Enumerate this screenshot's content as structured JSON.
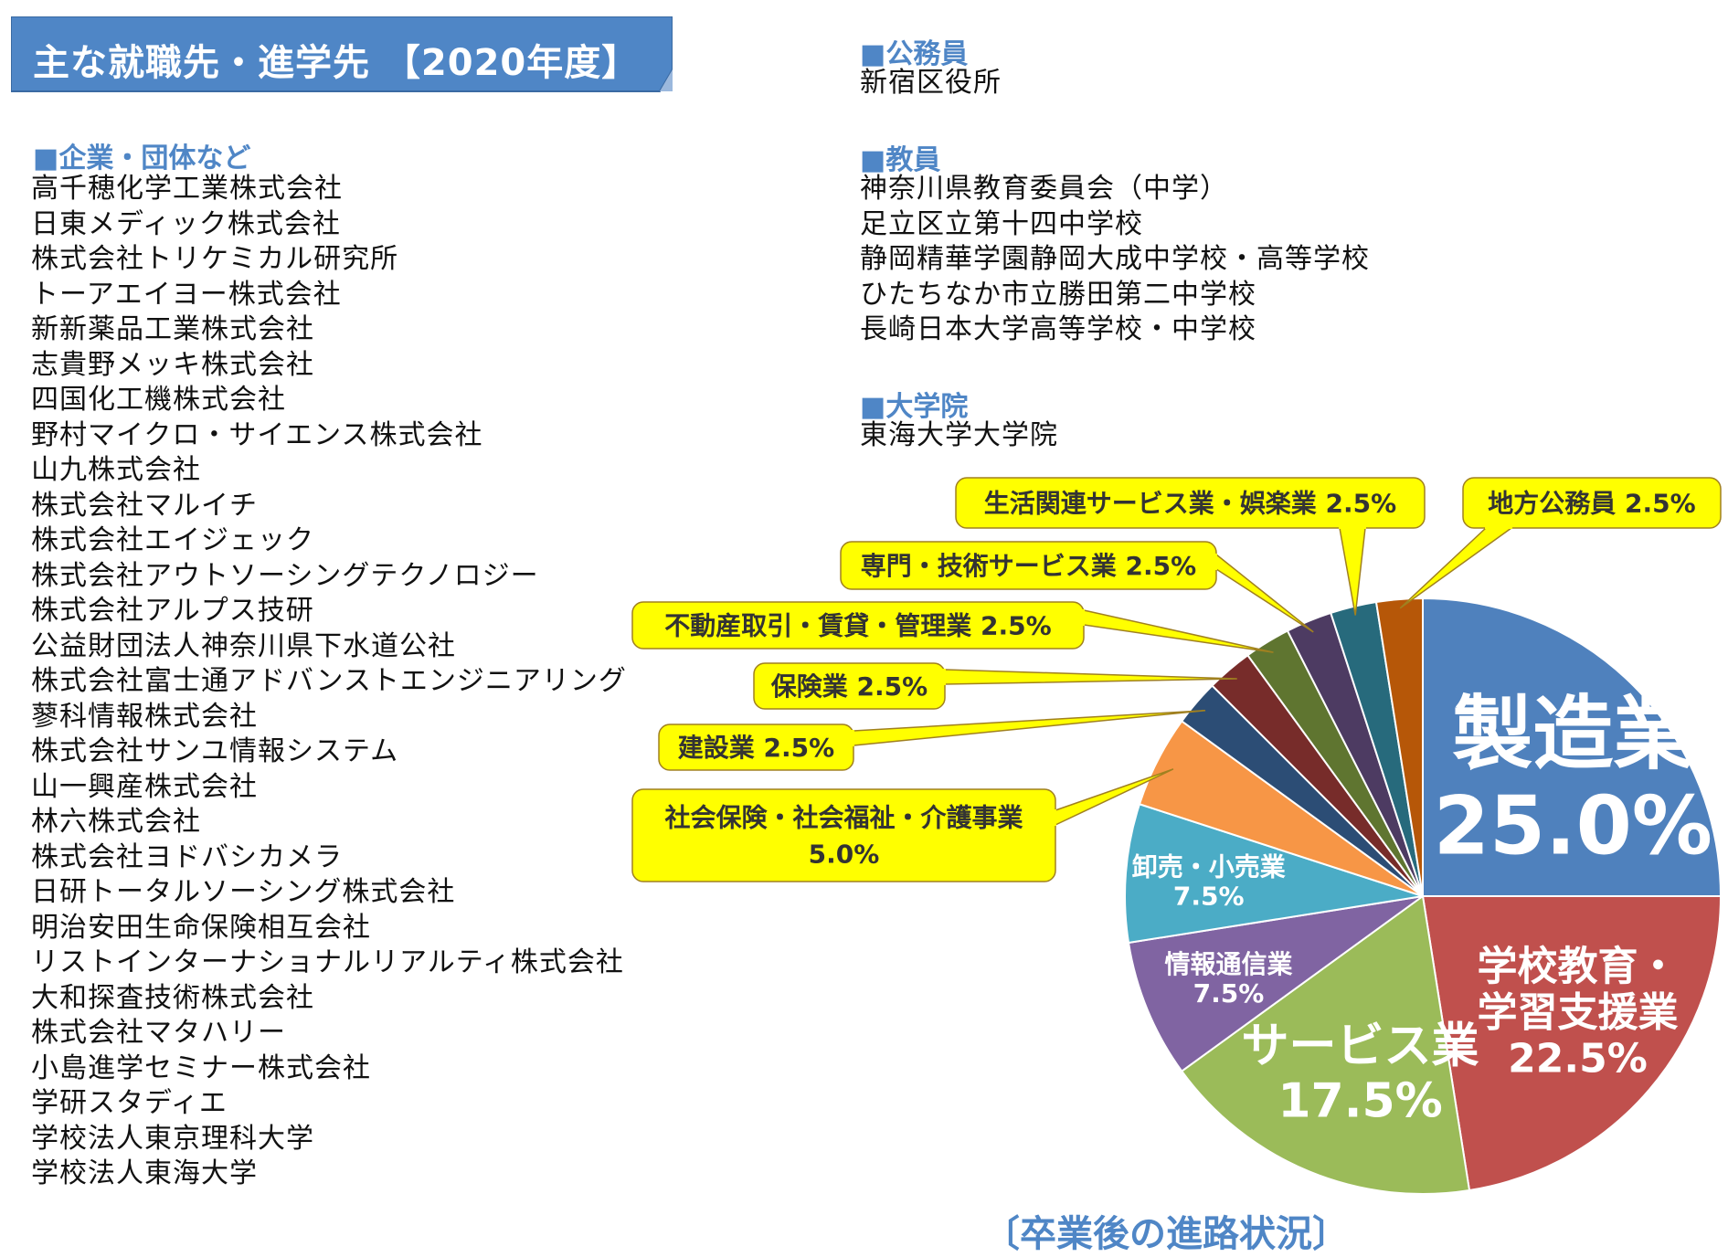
{
  "header": {
    "title": "主な就職先・進学先 【2020年度】"
  },
  "sections": {
    "companies": {
      "heading": "■企業・団体など",
      "items": [
        "高千穂化学工業株式会社",
        "日東メディック株式会社",
        "株式会社トリケミカル研究所",
        "トーアエイヨー株式会社",
        "新新薬品工業株式会社",
        "志貴野メッキ株式会社",
        "四国化工機株式会社",
        "野村マイクロ・サイエンス株式会社",
        "山九株式会社",
        "株式会社マルイチ",
        "株式会社エイジェック",
        "株式会社アウトソーシングテクノロジー",
        "株式会社アルプス技研",
        "公益財団法人神奈川県下水道公社",
        "株式会社富士通アドバンストエンジニアリング",
        "蓼科情報株式会社",
        "株式会社サンユ情報システム",
        "山一興産株式会社",
        "林六株式会社",
        "株式会社ヨドバシカメラ",
        "日研トータルソーシング株式会社",
        "明治安田生命保険相互会社",
        "リストインターナショナルリアルティ株式会社",
        "大和探査技術株式会社",
        "株式会社マタハリー",
        "小島進学セミナー株式会社",
        "学研スタディエ",
        "学校法人東京理科大学",
        "学校法人東海大学"
      ]
    },
    "civil_servants": {
      "heading": "■公務員",
      "items": [
        "新宿区役所"
      ]
    },
    "teachers": {
      "heading": "■教員",
      "items": [
        "神奈川県教育委員会（中学）",
        "足立区立第十四中学校",
        "静岡精華学園静岡大成中学校・高等学校",
        "ひたちなか市立勝田第二中学校",
        "長崎日本大学高等学校・中学校"
      ]
    },
    "graduate_school": {
      "heading": "■大学院",
      "items": [
        "東海大学大学院"
      ]
    }
  },
  "chart_data": {
    "type": "pie",
    "title": "〔卒業後の進路状況〕",
    "start": "12 o'clock, clockwise",
    "slices": [
      {
        "label": "製造業",
        "value": 25.0,
        "value_text": "25.0%",
        "color": "#4f81bd"
      },
      {
        "label": "学校教育・学習支援業",
        "value": 22.5,
        "value_text": "22.5%",
        "color": "#c0504d"
      },
      {
        "label": "サービス業",
        "value": 17.5,
        "value_text": "17.5%",
        "color": "#9bbb59"
      },
      {
        "label": "情報通信業",
        "value": 7.5,
        "value_text": "7.5%",
        "color": "#8064a2"
      },
      {
        "label": "卸売・小売業",
        "value": 7.5,
        "value_text": "7.5%",
        "color": "#4bacc6"
      },
      {
        "label": "社会保険・社会福祉・介護事業",
        "value": 5.0,
        "value_text": "5.0%",
        "color": "#f79646"
      },
      {
        "label": "建設業",
        "value": 2.5,
        "value_text": "2.5%",
        "color": "#2c4d75"
      },
      {
        "label": "保険業",
        "value": 2.5,
        "value_text": "2.5%",
        "color": "#772c2a"
      },
      {
        "label": "不動産取引・賃貸・管理業",
        "value": 2.5,
        "value_text": "2.5%",
        "color": "#5f7530"
      },
      {
        "label": "専門・技術サービス業",
        "value": 2.5,
        "value_text": "2.5%",
        "color": "#4d3b62"
      },
      {
        "label": "生活関連サービス業・娯楽業",
        "value": 2.5,
        "value_text": "2.5%",
        "color": "#276a7c"
      },
      {
        "label": "地方公務員",
        "value": 2.5,
        "value_text": "2.5%",
        "color": "#b65708"
      }
    ],
    "callout_style": {
      "fill": "#ffff00",
      "border": "#a08020",
      "text": "#333333"
    }
  }
}
